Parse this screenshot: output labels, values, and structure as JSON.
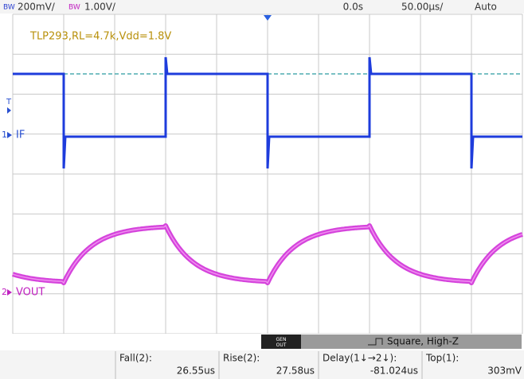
{
  "header": {
    "ch1_bw": "BW",
    "ch1_scale": "200mV/",
    "ch2_bw": "BW",
    "ch2_scale": "1.00V/",
    "time_delay": "0.0s",
    "time_scale": "50.00µs/",
    "trigger_mode": "Auto"
  },
  "annotation": "TLP293,RL=4.7k,Vdd=1.8V",
  "markers": {
    "trigger": "T",
    "ch1_number": "1",
    "ch1_label": "IF",
    "ch2_number": "2",
    "ch2_label": "VOUT"
  },
  "generator": {
    "button": "GEN OUT",
    "waveform": "Square, High-Z"
  },
  "measurements": [
    {
      "label": "Fall(2):",
      "value": "26.55us"
    },
    {
      "label": "Rise(2):",
      "value": "27.58us"
    },
    {
      "label": "Delay(1↓→2↓):",
      "value": "-81.024us"
    },
    {
      "label": "Top(1):",
      "value": "303mV"
    }
  ]
}
